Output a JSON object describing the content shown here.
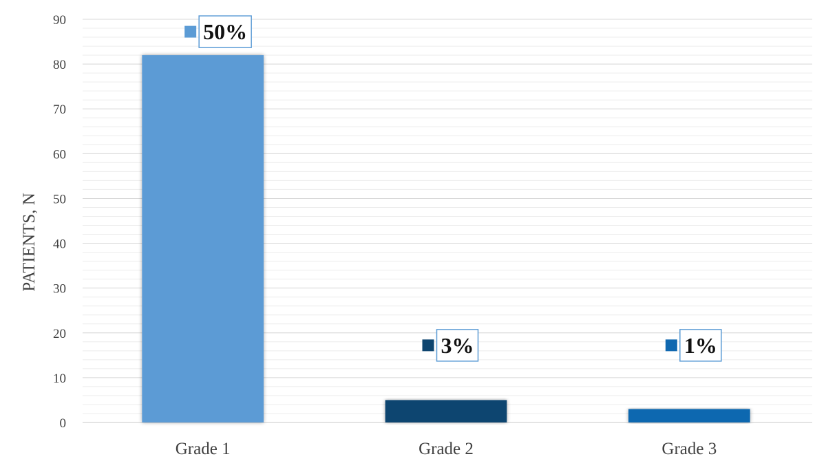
{
  "chart_data": {
    "type": "bar",
    "ylabel": "PATIENTS, N",
    "xlabel": "",
    "ylim": [
      0,
      90
    ],
    "y_major_step": 10,
    "y_minor_step": 2,
    "grid": true,
    "categories": [
      "Grade 1",
      "Grade 2",
      "Grade 3"
    ],
    "values": [
      82,
      5,
      3
    ],
    "data_labels": [
      "50%",
      "3%",
      "1%"
    ],
    "colors": [
      "#5b9bd5",
      "#0e456f",
      "#1068b0"
    ],
    "label_box_color": "#5b9bd5"
  }
}
